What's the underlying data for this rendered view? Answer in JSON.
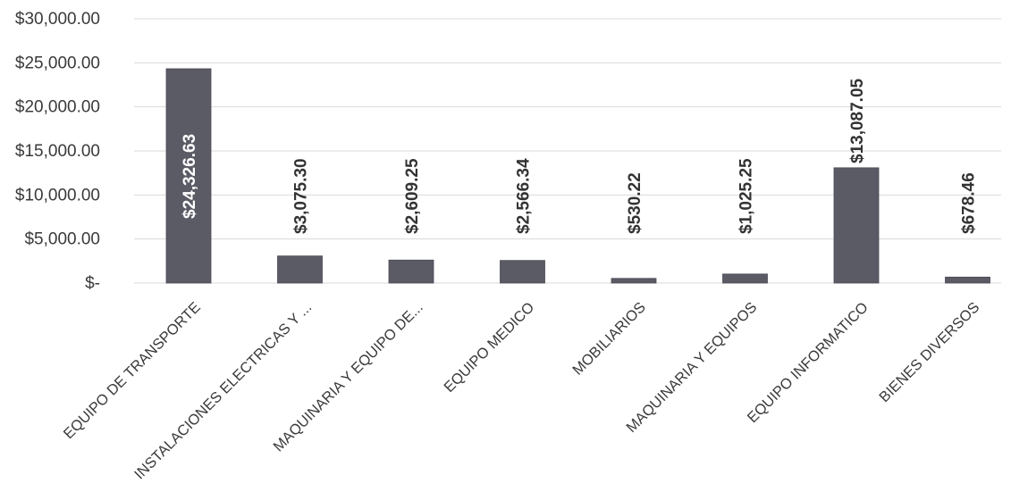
{
  "chart_data": {
    "type": "bar",
    "title": "",
    "xlabel": "",
    "ylabel": "",
    "ylim": [
      0,
      30000
    ],
    "yticks": [
      0,
      5000,
      10000,
      15000,
      20000,
      25000,
      30000
    ],
    "ytick_labels": [
      "$-",
      "$5,000.00",
      "$10,000.00",
      "$15,000.00",
      "$20,000.00",
      "$25,000.00",
      "$30,000.00"
    ],
    "grid": true,
    "legend": "none",
    "bar_color": "#5b5b66",
    "categories": [
      "EQUIPO DE TRANSPORTE",
      "INSTALACIONES ELECTRICAS Y ...",
      "MAQUINARIA Y EQUIPO DE...",
      "EQUIPO MEDICO",
      "MOBILIARIOS",
      "MAQUINARIA Y EQUIPOS",
      "EQUIPO INFORMATICO",
      "BIENES DIVERSOS"
    ],
    "values": [
      24326.63,
      3075.3,
      2609.25,
      2566.34,
      530.22,
      1025.25,
      13087.05,
      678.46
    ],
    "data_labels": [
      "$24,326.63",
      "$3,075.30",
      "$2,609.25",
      "$2,566.34",
      "$530.22",
      "$1,025.25",
      "$13,087.05",
      "$678.46"
    ]
  }
}
